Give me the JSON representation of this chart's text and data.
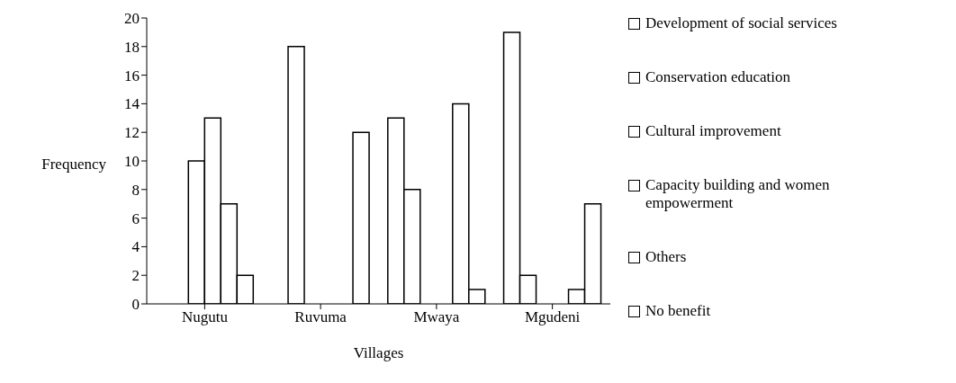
{
  "chart_data": {
    "type": "bar",
    "xlabel": "Villages",
    "ylabel": "Frequency",
    "categories": [
      "Nugutu",
      "Ruvuma",
      "Mwaya",
      "Mgudeni"
    ],
    "series": [
      {
        "name": "Development of social services",
        "color": "#ffffff",
        "values": [
          0,
          0,
          13,
          19
        ]
      },
      {
        "name": "Conservation education",
        "color": "#ffffff",
        "values": [
          0,
          18,
          8,
          2
        ]
      },
      {
        "name": "Cultural improvement",
        "color": "#ffffff",
        "values": [
          10,
          0,
          0,
          0
        ]
      },
      {
        "name": "Capacity building and women empowerment",
        "color": "#ffffff",
        "values": [
          13,
          0,
          0,
          0
        ]
      },
      {
        "name": "Others",
        "color": "#ffffff",
        "values": [
          7,
          0,
          14,
          1
        ]
      },
      {
        "name": "No benefit",
        "color": "#ffffff",
        "values": [
          2,
          12,
          1,
          7
        ]
      }
    ],
    "ylim": [
      0,
      20
    ],
    "yticks": [
      0,
      2,
      4,
      6,
      8,
      10,
      12,
      14,
      16,
      18,
      20
    ],
    "grid": false,
    "legend": "right"
  }
}
